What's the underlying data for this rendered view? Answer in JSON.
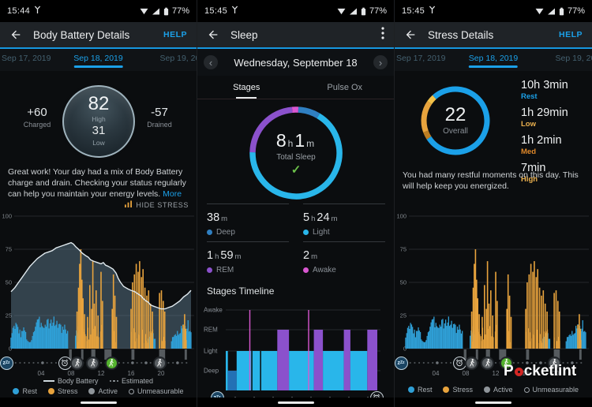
{
  "watermark": {
    "prefix": "P",
    "suffix": "cketlint"
  },
  "panels": [
    {
      "status_time": "15:44",
      "battery": "77%",
      "appbar": {
        "title": "Body Battery Details",
        "action": "HELP"
      },
      "dates": {
        "prev": "Sep 17, 2019",
        "selected": "Sep 18, 2019",
        "next": "Sep 19, 2019"
      },
      "gauge": {
        "value": "82",
        "value_label": "High",
        "low": "31",
        "low_label": "Low",
        "left_value": "+60",
        "left_label": "Charged",
        "right_value": "-57",
        "right_label": "Drained"
      },
      "summary_text": "Great work! Your day had a mix of Body Battery charge and drain. Checking your status regularly can help you maintain your energy levels. ",
      "summary_link": "More",
      "hide_stress_label": "HIDE STRESS",
      "legend_series": [
        {
          "swatch": "line",
          "label": "Body Battery"
        },
        {
          "swatch": "dots",
          "label": "Estimated"
        }
      ],
      "legend_status": [
        {
          "swatch": "dot",
          "color": "#2f9fd6",
          "label": "Rest"
        },
        {
          "swatch": "dot",
          "color": "#e8a33d",
          "label": "Stress"
        },
        {
          "swatch": "dot",
          "color": "#8f959a",
          "label": "Active"
        },
        {
          "swatch": "ring",
          "color": "#9aa0a6",
          "label": "Unmeasurable"
        }
      ]
    },
    {
      "status_time": "15:45",
      "battery": "77%",
      "appbar": {
        "title": "Sleep"
      },
      "date_nav_label": "Wednesday, September 18",
      "tabs": [
        {
          "label": "Stages",
          "active": true
        },
        {
          "label": "Pulse Ox",
          "active": false
        }
      ],
      "total_parts": [
        [
          "8",
          "n"
        ],
        [
          "h",
          "u"
        ],
        [
          "1",
          "n"
        ],
        [
          "m",
          "u"
        ]
      ],
      "total_label": "Total Sleep",
      "ring_segments": [
        {
          "from": 3,
          "to": 31,
          "color": "#2f7fc1",
          "stage": "Deep"
        },
        {
          "from": 31,
          "to": 271,
          "color": "#29b6ea",
          "stage": "Light"
        },
        {
          "from": 271,
          "to": 355,
          "color": "#8b51cc",
          "stage": "REM"
        },
        {
          "from": 355,
          "to": 363,
          "color": "#d957d0",
          "stage": "Awake"
        }
      ],
      "stats": [
        {
          "parts": [
            [
              "38",
              "n"
            ],
            [
              "m",
              "u"
            ]
          ],
          "label": "Deep",
          "color": "#2f7fc1"
        },
        {
          "parts": [
            [
              "5",
              "n"
            ],
            [
              "h",
              "u"
            ],
            [
              "24",
              "n"
            ],
            [
              "m",
              "u"
            ]
          ],
          "label": "Light",
          "color": "#29b6ea"
        },
        {
          "parts": [
            [
              "1",
              "n"
            ],
            [
              "h",
              "u"
            ],
            [
              "59",
              "n"
            ],
            [
              "m",
              "u"
            ]
          ],
          "label": "REM",
          "color": "#8b51cc"
        },
        {
          "parts": [
            [
              "2",
              "n"
            ],
            [
              "m",
              "u"
            ]
          ],
          "label": "Awake",
          "color": "#d957d0"
        }
      ],
      "timeline_title": "Stages Timeline"
    },
    {
      "status_time": "15:45",
      "battery": "77%",
      "appbar": {
        "title": "Stress Details",
        "action": "HELP"
      },
      "dates": {
        "prev": "Sep 17, 2019",
        "selected": "Sep 18, 2019",
        "next": "Sep 19, 2019"
      },
      "gauge": {
        "value": "22",
        "label": "Overall"
      },
      "ring_segments": [
        {
          "from": 318,
          "to": 597,
          "color": "#1ba0e8",
          "label": "Rest"
        },
        {
          "from": 237,
          "to": 250,
          "color": "#bc7d22",
          "label": "Med"
        },
        {
          "from": 250,
          "to": 305,
          "color": "#e8a33d",
          "label": "Low"
        },
        {
          "from": 305,
          "to": 318,
          "color": "#f2c24a",
          "label": "High"
        }
      ],
      "stats": [
        {
          "value": "10h 3min",
          "label": "Rest",
          "color": "#1ba0e8"
        },
        {
          "value": "1h 29min",
          "label": "Low",
          "color": "#eab04e"
        },
        {
          "value": "1h 2min",
          "label": "Med",
          "color": "#e0882a"
        },
        {
          "value": "7min",
          "label": "High",
          "color": "#eab04e"
        }
      ],
      "summary_text": "You had many restful moments on this day. This will help keep you energized.",
      "legend_status": [
        {
          "swatch": "dot",
          "color": "#2f9fd6",
          "label": "Rest"
        },
        {
          "swatch": "dot",
          "color": "#e8a33d",
          "label": "Stress"
        },
        {
          "swatch": "dot",
          "color": "#8f959a",
          "label": "Active"
        },
        {
          "swatch": "ring",
          "color": "#9aa0a6",
          "label": "Unmeasurable"
        }
      ]
    }
  ],
  "chart_data": [
    {
      "id": "body-battery-day",
      "type": "composite",
      "x_range": [
        0,
        24
      ],
      "x_ticks": [
        {
          "h": 4,
          "label": "04"
        },
        {
          "h": 8,
          "label": "08"
        },
        {
          "h": 12,
          "label": "12"
        },
        {
          "h": 16,
          "label": "16"
        },
        {
          "h": 20,
          "label": "20"
        }
      ],
      "ylim": [
        0,
        100
      ],
      "y_ticks": [
        100,
        75,
        50,
        25,
        0
      ],
      "show_body_battery": true,
      "body_battery": [
        [
          0,
          43
        ],
        [
          0.5,
          46
        ],
        [
          1,
          50
        ],
        [
          1.5,
          54
        ],
        [
          2,
          58
        ],
        [
          2.5,
          62
        ],
        [
          3,
          65
        ],
        [
          3.5,
          68
        ],
        [
          4,
          70
        ],
        [
          4.5,
          72
        ],
        [
          5,
          73
        ],
        [
          5.5,
          74
        ],
        [
          6,
          76
        ],
        [
          6.5,
          77
        ],
        [
          7,
          78
        ],
        [
          7.5,
          79
        ],
        [
          8,
          80
        ],
        [
          8.3,
          79
        ],
        [
          8.6,
          77
        ],
        [
          9,
          75
        ],
        [
          9.5,
          72
        ],
        [
          10,
          70
        ],
        [
          10.3,
          69
        ],
        [
          10.6,
          67
        ],
        [
          11,
          66
        ],
        [
          11.5,
          65
        ],
        [
          12,
          64
        ],
        [
          12.3,
          65
        ],
        [
          12.6,
          63
        ],
        [
          13,
          62
        ],
        [
          13.3,
          61
        ],
        [
          13.6,
          60
        ],
        [
          14,
          57
        ],
        [
          14.3,
          53
        ],
        [
          14.6,
          50
        ],
        [
          15,
          47
        ],
        [
          15.3,
          46
        ],
        [
          15.6,
          45
        ],
        [
          16,
          44
        ],
        [
          16.5,
          43
        ],
        [
          17,
          41
        ],
        [
          17.3,
          40
        ],
        [
          17.6,
          38
        ],
        [
          18,
          36
        ],
        [
          18.3,
          35
        ],
        [
          18.6,
          33
        ],
        [
          19,
          32
        ],
        [
          19.5,
          31
        ],
        [
          20,
          30
        ],
        [
          20.5,
          30
        ],
        [
          21,
          31
        ],
        [
          21.5,
          32
        ],
        [
          22,
          34
        ],
        [
          22.5,
          36
        ],
        [
          23,
          39
        ],
        [
          23.5,
          41
        ],
        [
          24,
          44
        ]
      ],
      "stress_spikes": [
        [
          8.8,
          28
        ],
        [
          9.0,
          46
        ],
        [
          9.15,
          64
        ],
        [
          9.3,
          75
        ],
        [
          9.45,
          52
        ],
        [
          9.6,
          38
        ],
        [
          9.8,
          26
        ],
        [
          10.2,
          24
        ],
        [
          10.5,
          48
        ],
        [
          10.75,
          30
        ],
        [
          10.9,
          66
        ],
        [
          11.1,
          34
        ],
        [
          11.35,
          44
        ],
        [
          11.6,
          25
        ],
        [
          12.0,
          58
        ],
        [
          12.2,
          36
        ],
        [
          13.5,
          30
        ],
        [
          13.65,
          56
        ],
        [
          13.85,
          40
        ],
        [
          14.05,
          24
        ],
        [
          16.0,
          30
        ],
        [
          16.2,
          50
        ],
        [
          16.45,
          56
        ],
        [
          16.7,
          64
        ],
        [
          16.95,
          58
        ],
        [
          17.15,
          66
        ],
        [
          17.4,
          54
        ],
        [
          17.6,
          60
        ],
        [
          17.85,
          46
        ],
        [
          18.1,
          40
        ],
        [
          18.35,
          44
        ],
        [
          18.6,
          34
        ],
        [
          18.85,
          28
        ],
        [
          19.8,
          42
        ],
        [
          20.05,
          44
        ],
        [
          20.3,
          36
        ],
        [
          20.5,
          28
        ],
        [
          22.95,
          18
        ],
        [
          23.15,
          26
        ],
        [
          23.3,
          15
        ]
      ],
      "stress_clusters": [
        {
          "from": 8.7,
          "to": 12.4,
          "max": 18,
          "seed": 7
        },
        {
          "from": 13.4,
          "to": 14.2,
          "max": 15,
          "seed": 11
        },
        {
          "from": 15.9,
          "to": 19.0,
          "max": 16,
          "seed": 13
        },
        {
          "from": 19.7,
          "to": 20.6,
          "max": 14,
          "seed": 17
        },
        {
          "from": 22.9,
          "to": 23.4,
          "max": 10,
          "seed": 19
        }
      ],
      "rest_clusters": [
        {
          "seed": 3,
          "keypoints": [
            [
              0,
              12
            ],
            [
              0.4,
              19
            ],
            [
              0.9,
              22
            ],
            [
              1.3,
              13
            ],
            [
              1.7,
              18
            ],
            [
              2.2,
              8
            ],
            [
              2.6,
              6
            ],
            [
              3.0,
              16
            ],
            [
              3.4,
              22
            ],
            [
              3.9,
              25
            ],
            [
              4.4,
              23
            ],
            [
              4.9,
              26
            ],
            [
              5.4,
              24
            ],
            [
              5.9,
              26
            ],
            [
              6.4,
              22
            ],
            [
              6.9,
              18
            ],
            [
              7.3,
              20
            ],
            [
              7.6,
              12
            ]
          ]
        },
        {
          "seed": 5,
          "keypoints": [
            [
              8.6,
              14
            ],
            [
              9.0,
              18
            ],
            [
              9.6,
              9
            ]
          ]
        },
        {
          "seed": 23,
          "keypoints": [
            [
              18.3,
              11
            ],
            [
              18.8,
              15
            ],
            [
              19.3,
              7
            ]
          ]
        },
        {
          "seed": 29,
          "keypoints": [
            [
              21.4,
              8
            ],
            [
              22.0,
              13
            ],
            [
              22.6,
              17
            ],
            [
              23.2,
              20
            ],
            [
              23.6,
              24
            ],
            [
              24,
              15
            ]
          ]
        }
      ],
      "active_spans": [
        [
          7.75,
          8.1
        ],
        [
          9.35,
          9.65
        ],
        [
          10.7,
          11.25
        ],
        [
          12.45,
          13.4
        ],
        [
          16.05,
          16.45
        ],
        [
          19.75,
          20.55
        ],
        [
          23.15,
          23.45
        ]
      ],
      "icons": [
        {
          "name": "alarm",
          "h": 7.2
        },
        {
          "name": "walk",
          "h": 8.8
        },
        {
          "name": "walk",
          "h": 10.9
        },
        {
          "name": "walk-green",
          "h": 13.4
        },
        {
          "name": "walk",
          "h": 19.8
        }
      ],
      "colors": {
        "rest": "#2f9fd6",
        "stress": "#e8a33d",
        "active": "#565b5f",
        "area": "rgba(100,130,150,0.45)",
        "line": "#e2ebf0"
      }
    },
    {
      "id": "sleep-stages",
      "type": "sleep-timeline",
      "stages_axis": [
        "Awake",
        "REM",
        "Light",
        "Deep"
      ],
      "segments": [
        {
          "from": 0.0,
          "to": 0.014,
          "stage": "Light"
        },
        {
          "from": 0.014,
          "to": 0.072,
          "stage": "Deep"
        },
        {
          "from": 0.072,
          "to": 0.34,
          "stage": "Light"
        },
        {
          "from": 0.34,
          "to": 0.417,
          "stage": "REM"
        },
        {
          "from": 0.417,
          "to": 0.581,
          "stage": "Light"
        },
        {
          "from": 0.581,
          "to": 0.641,
          "stage": "REM"
        },
        {
          "from": 0.641,
          "to": 0.779,
          "stage": "Light"
        },
        {
          "from": 0.779,
          "to": 0.822,
          "stage": "REM"
        },
        {
          "from": 0.822,
          "to": 0.934,
          "stage": "Light"
        },
        {
          "from": 0.934,
          "to": 1.0,
          "stage": "REM"
        }
      ],
      "awake_spikes": [
        0.159,
        0.547
      ],
      "gap_notches": [
        0.172,
        0.23
      ],
      "stage_colors": {
        "Deep": "#2371b5",
        "Light": "#29b6ea",
        "REM": "#8b51cc",
        "Awake": "#d957d0"
      },
      "start_icon": "sleep",
      "end_icon": "alarm"
    },
    {
      "id": "stress-day",
      "type": "bar",
      "same_as": "body-battery-day",
      "show_body_battery": false
    }
  ]
}
